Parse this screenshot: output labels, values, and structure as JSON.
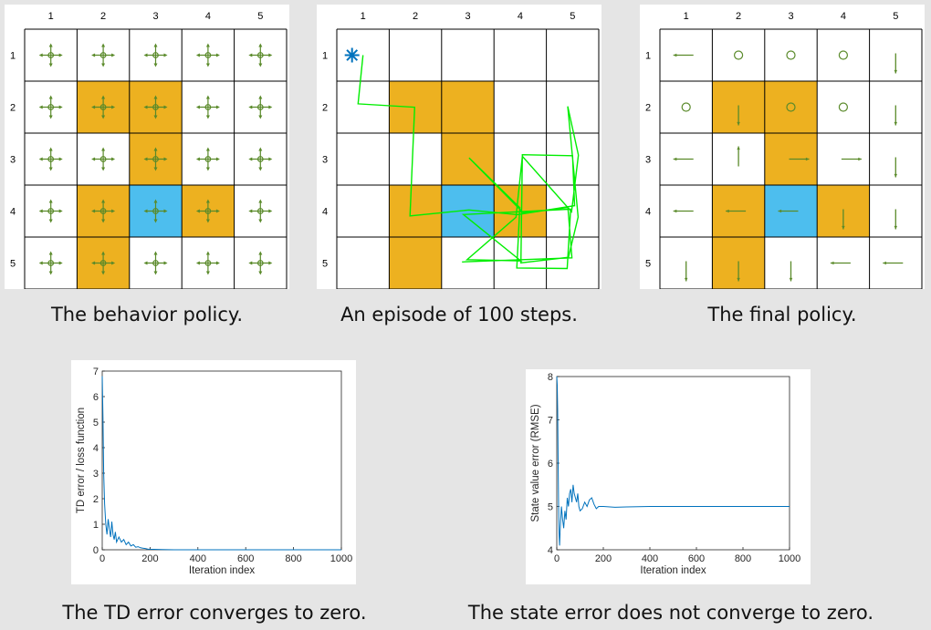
{
  "grid": {
    "rows": 5,
    "cols": 5,
    "col_labels": [
      "1",
      "2",
      "3",
      "4",
      "5"
    ],
    "row_labels": [
      "1",
      "2",
      "3",
      "4",
      "5"
    ],
    "forbidden_cells": [
      [
        2,
        2
      ],
      [
        2,
        3
      ],
      [
        3,
        3
      ],
      [
        4,
        2
      ],
      [
        4,
        4
      ],
      [
        5,
        2
      ]
    ],
    "target_cell": [
      4,
      3
    ],
    "colors": {
      "forbidden": "#EDB120",
      "target": "#4DBEEE",
      "policy": "#5a8a2a",
      "trajectory": "#00ee00",
      "start_marker": "#0072BD",
      "line": "#0072BD",
      "grid_line": "#000000"
    }
  },
  "behavior_policy": {
    "caption": "The behavior policy.",
    "description_icon": "uniform-five-action-cross-icon"
  },
  "episode": {
    "caption": "An episode of 100 steps.",
    "start_cell": [
      1,
      1
    ],
    "start_marker_icon": "asterisk-icon",
    "path_cells": [
      [
        1,
        1
      ],
      [
        2,
        1
      ],
      [
        2,
        2
      ],
      [
        4,
        2
      ],
      [
        4,
        3
      ],
      [
        4,
        4
      ],
      [
        4,
        5
      ],
      [
        3,
        5
      ],
      [
        3,
        4
      ],
      [
        5,
        4
      ],
      [
        5,
        5
      ],
      [
        4,
        5
      ],
      [
        2,
        5
      ],
      [
        3,
        5
      ],
      [
        4,
        5
      ],
      [
        3,
        4
      ],
      [
        4,
        4
      ],
      [
        5,
        3
      ],
      [
        5,
        4
      ],
      [
        4,
        3
      ],
      [
        4,
        5
      ],
      [
        5,
        5
      ],
      [
        5,
        4
      ],
      [
        4,
        4
      ],
      [
        3,
        3
      ],
      [
        4,
        4
      ],
      [
        4,
        5
      ],
      [
        5,
        5
      ],
      [
        5,
        3
      ]
    ]
  },
  "final_policy": {
    "caption": "The final policy.",
    "actions": [
      [
        "left",
        "stay",
        "stay",
        "stay",
        "down"
      ],
      [
        "stay",
        "down",
        "stay",
        "stay",
        "down"
      ],
      [
        "left",
        "up",
        "right",
        "right",
        "down"
      ],
      [
        "left",
        "left",
        "left",
        "down",
        "down"
      ],
      [
        "down",
        "down",
        "down",
        "left",
        "left"
      ]
    ]
  },
  "chart_data": [
    {
      "type": "line",
      "caption": "The TD error converges to zero.",
      "xlabel": "Iteration index",
      "ylabel": "TD error / loss function",
      "xlim": [
        0,
        1000
      ],
      "ylim": [
        0,
        7
      ],
      "xticks": [
        0,
        200,
        400,
        600,
        800,
        1000
      ],
      "yticks": [
        0,
        1,
        2,
        3,
        4,
        5,
        6,
        7
      ],
      "x": [
        0,
        3,
        6,
        10,
        15,
        20,
        25,
        30,
        35,
        40,
        45,
        50,
        55,
        60,
        70,
        80,
        90,
        100,
        110,
        120,
        130,
        140,
        150,
        160,
        170,
        180,
        190,
        200,
        250,
        300,
        400,
        500,
        600,
        700,
        800,
        900,
        1000
      ],
      "y": [
        6.8,
        5.2,
        3.0,
        1.8,
        1.0,
        0.6,
        1.2,
        0.8,
        0.5,
        1.1,
        0.6,
        0.4,
        0.7,
        0.3,
        0.5,
        0.3,
        0.4,
        0.2,
        0.3,
        0.15,
        0.2,
        0.1,
        0.12,
        0.08,
        0.06,
        0.05,
        0.03,
        0.02,
        0.01,
        0.0,
        0.0,
        0.0,
        0.0,
        0.0,
        0.0,
        0.0,
        0.0
      ]
    },
    {
      "type": "line",
      "caption": "The state error does not converge to zero.",
      "xlabel": "Iteration index",
      "ylabel": "State value error (RMSE)",
      "xlim": [
        0,
        1000
      ],
      "ylim": [
        4,
        8
      ],
      "xticks": [
        0,
        200,
        400,
        600,
        800,
        1000
      ],
      "yticks": [
        4,
        5,
        6,
        7,
        8
      ],
      "x": [
        0,
        2,
        4,
        6,
        8,
        10,
        12,
        15,
        18,
        20,
        25,
        30,
        35,
        40,
        45,
        50,
        55,
        60,
        65,
        70,
        75,
        80,
        85,
        90,
        95,
        100,
        110,
        120,
        130,
        140,
        150,
        160,
        170,
        180,
        200,
        250,
        300,
        400,
        500,
        600,
        700,
        800,
        900,
        1000
      ],
      "y": [
        8.0,
        7.8,
        7.2,
        6.0,
        5.0,
        4.4,
        4.1,
        4.5,
        4.8,
        5.0,
        4.7,
        4.5,
        4.9,
        4.7,
        5.2,
        5.0,
        5.3,
        5.4,
        5.1,
        5.5,
        5.3,
        5.2,
        5.1,
        5.3,
        5.0,
        4.9,
        4.95,
        5.1,
        5.0,
        5.15,
        5.2,
        5.05,
        4.95,
        5.0,
        5.0,
        4.98,
        4.99,
        5.0,
        5.0,
        5.0,
        5.0,
        5.0,
        5.0,
        5.0
      ]
    }
  ]
}
